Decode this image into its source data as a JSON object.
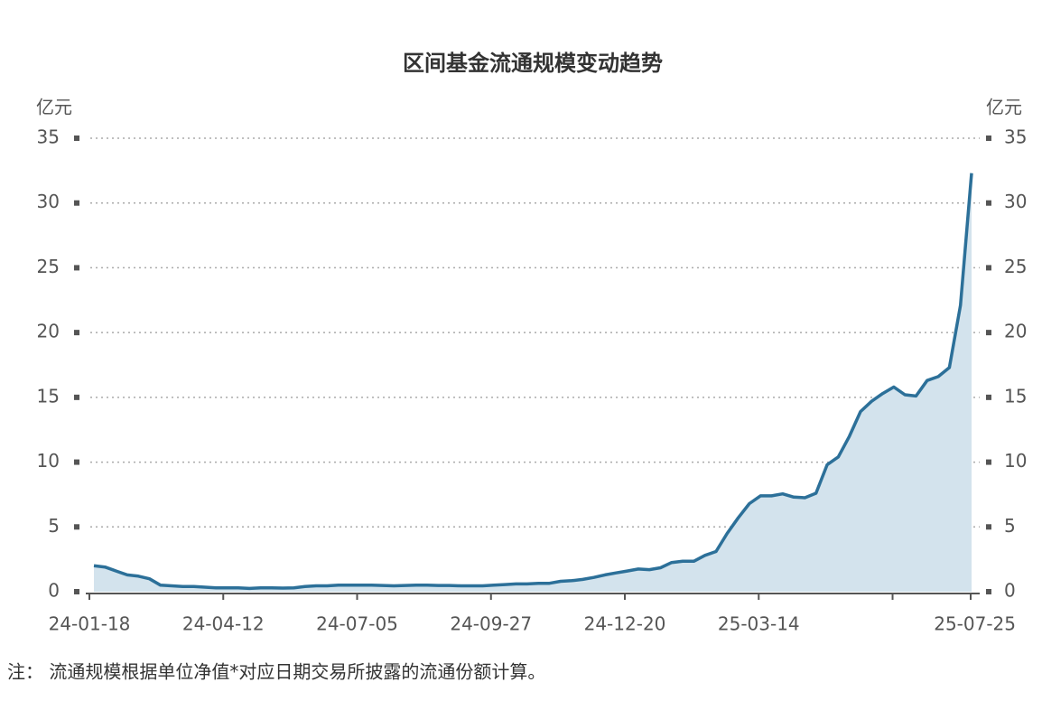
{
  "chart_data": {
    "type": "area",
    "title": "区间基金流通规模变动趋势",
    "y_unit": "亿元",
    "note": "注：  流通规模根据单位净值*对应日期交易所披露的流通份额计算。",
    "categories": [
      "24-01-18",
      null,
      null,
      null,
      null,
      null,
      null,
      null,
      null,
      null,
      null,
      null,
      "24-04-12",
      null,
      null,
      null,
      null,
      null,
      null,
      null,
      null,
      null,
      null,
      null,
      "24-07-05",
      null,
      null,
      null,
      null,
      null,
      null,
      null,
      null,
      null,
      null,
      null,
      "24-09-27",
      null,
      null,
      null,
      null,
      null,
      null,
      null,
      null,
      null,
      null,
      null,
      "24-12-20",
      null,
      null,
      null,
      null,
      null,
      null,
      null,
      null,
      null,
      null,
      null,
      "25-03-14",
      null,
      null,
      null,
      null,
      null,
      null,
      null,
      null,
      null,
      null,
      null,
      null,
      null,
      null,
      null,
      null,
      null,
      null,
      "25-07-25"
    ],
    "series": [
      {
        "name": "流通规模",
        "color": "#2c7099",
        "area_color": "#d3e3ed",
        "values": [
          2.0,
          1.9,
          1.6,
          1.3,
          1.2,
          1.0,
          0.5,
          0.45,
          0.4,
          0.4,
          0.35,
          0.3,
          0.3,
          0.3,
          0.25,
          0.3,
          0.3,
          0.28,
          0.3,
          0.4,
          0.45,
          0.45,
          0.5,
          0.5,
          0.5,
          0.5,
          0.48,
          0.45,
          0.48,
          0.5,
          0.5,
          0.48,
          0.48,
          0.45,
          0.45,
          0.45,
          0.5,
          0.55,
          0.6,
          0.6,
          0.65,
          0.65,
          0.8,
          0.85,
          0.95,
          1.1,
          1.3,
          1.45,
          1.6,
          1.75,
          1.7,
          1.85,
          2.25,
          2.35,
          2.35,
          2.8,
          3.1,
          4.5,
          5.7,
          6.8,
          7.4,
          7.4,
          7.55,
          7.3,
          7.25,
          7.6,
          9.8,
          10.4,
          12.0,
          13.9,
          14.7,
          15.3,
          15.8,
          15.2,
          15.1,
          16.3,
          16.6,
          17.3,
          22.1,
          32.3
        ]
      }
    ],
    "ylim": [
      0,
      35
    ],
    "yticks": [
      0,
      5,
      10,
      15,
      20,
      25,
      30,
      35
    ],
    "grid": true
  }
}
